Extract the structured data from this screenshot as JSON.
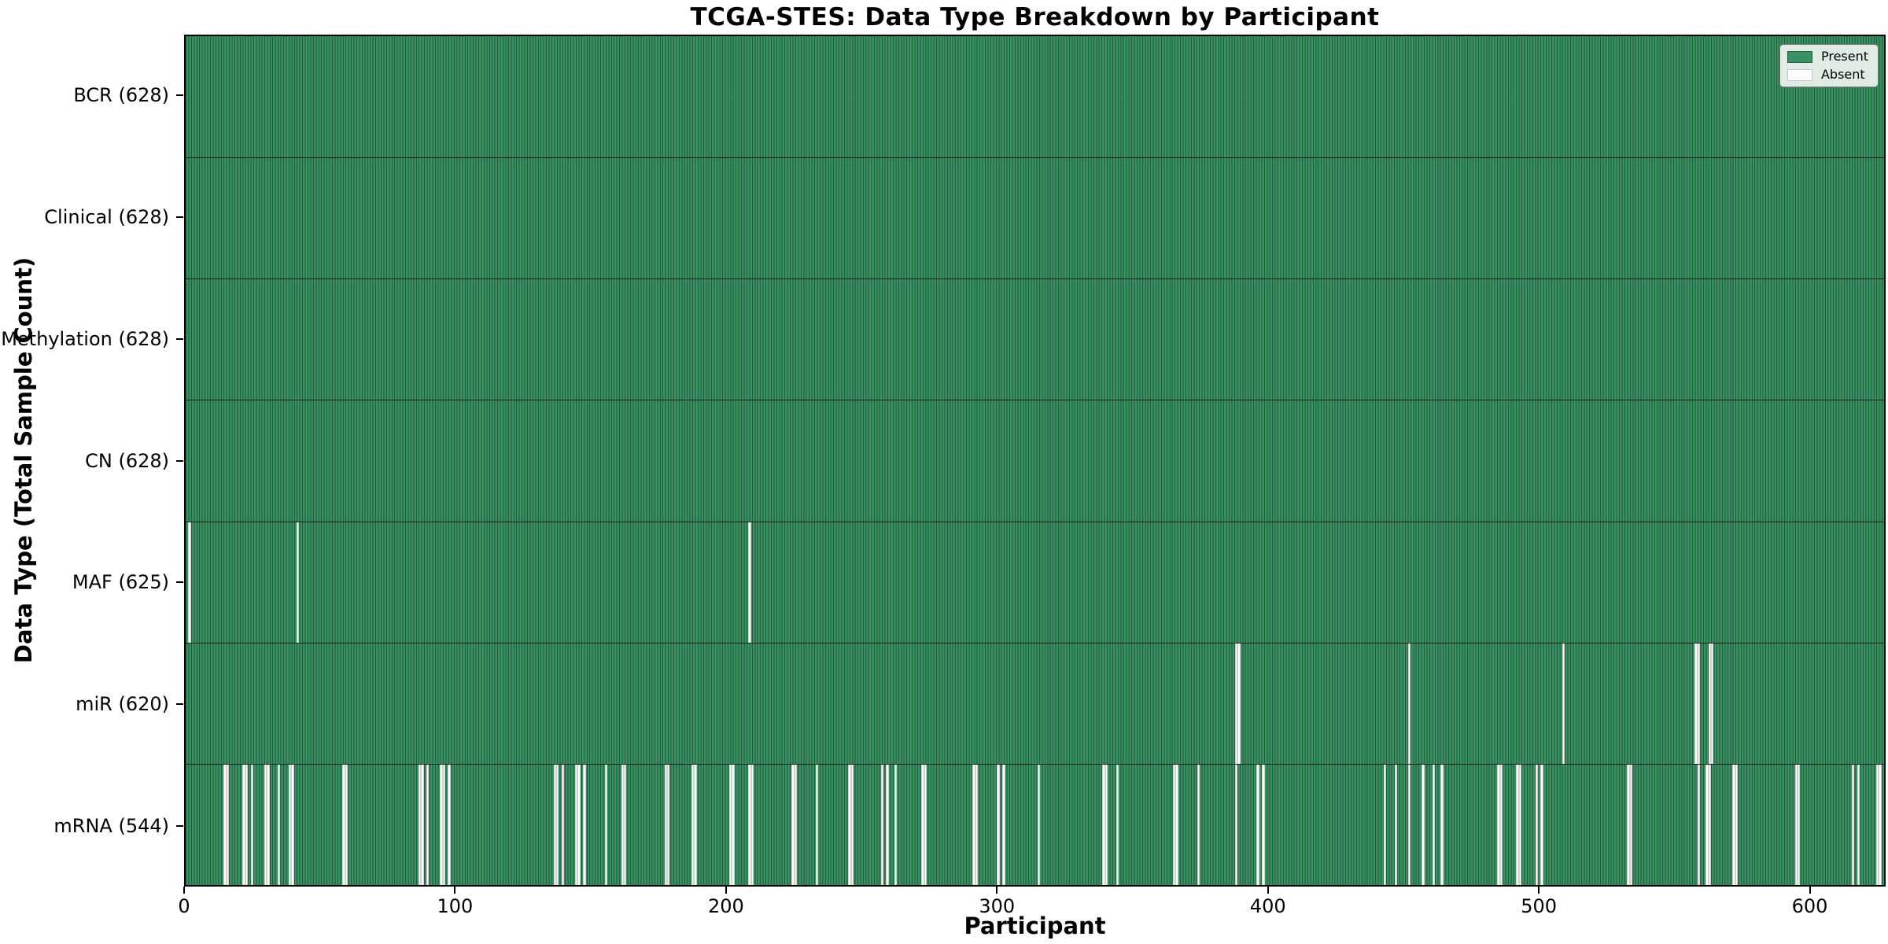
{
  "figure": {
    "title": "TCGA-STES: Data Type Breakdown by Participant",
    "xlabel": "Participant",
    "ylabel": "Data Type (Total Sample Count)"
  },
  "legend": {
    "position": "upper right",
    "items": [
      {
        "label": "Present",
        "color": "#3a9161"
      },
      {
        "label": "Absent",
        "color": "#ffffff"
      }
    ]
  },
  "chart_data": {
    "type": "heatmap",
    "title": "TCGA-STES: Data Type Breakdown by Participant",
    "xlabel": "Participant",
    "ylabel": "Data Type (Total Sample Count)",
    "n_participants": 628,
    "x_ticks": [
      0,
      100,
      200,
      300,
      400,
      500,
      600
    ],
    "grid": false,
    "colors": {
      "present": "#3a9161",
      "absent": "#ffffff",
      "cell_edge": "#0c2c1c",
      "row_separator": "#0a0a0a",
      "plot_border": "#000000"
    },
    "rows": [
      {
        "label": "BCR (628)",
        "data_type": "BCR",
        "present_count": 628,
        "absent_count": 0,
        "absent_participants": []
      },
      {
        "label": "Clinical (628)",
        "data_type": "Clinical",
        "present_count": 628,
        "absent_count": 0,
        "absent_participants": []
      },
      {
        "label": "Methylation (628)",
        "data_type": "Methylation",
        "present_count": 628,
        "absent_count": 0,
        "absent_participants": []
      },
      {
        "label": "CN (628)",
        "data_type": "CN",
        "present_count": 628,
        "absent_count": 0,
        "absent_participants": []
      },
      {
        "label": "MAF (625)",
        "data_type": "MAF",
        "present_count": 625,
        "absent_count": 3,
        "absent_participants": [
          1,
          41,
          208
        ]
      },
      {
        "label": "miR (620)",
        "data_type": "miR",
        "present_count": 620,
        "absent_count": 8,
        "absent_participants": [
          388,
          389,
          452,
          509,
          558,
          559,
          563,
          564
        ]
      },
      {
        "label": "mRNA (544)",
        "data_type": "mRNA",
        "present_count": 544,
        "absent_count": 84,
        "absent_participants": [
          14,
          15,
          21,
          22,
          24,
          29,
          30,
          34,
          38,
          39,
          58,
          59,
          86,
          87,
          89,
          94,
          95,
          97,
          136,
          137,
          139,
          144,
          145,
          147,
          155,
          161,
          162,
          177,
          178,
          187,
          188,
          201,
          202,
          208,
          209,
          224,
          225,
          233,
          245,
          246,
          257,
          259,
          262,
          272,
          273,
          291,
          292,
          300,
          302,
          315,
          339,
          340,
          344,
          365,
          366,
          374,
          388,
          396,
          398,
          443,
          447,
          452,
          457,
          461,
          464,
          485,
          486,
          492,
          493,
          499,
          501,
          533,
          534,
          559,
          562,
          563,
          572,
          573,
          595,
          596,
          616,
          618,
          625,
          626
        ]
      }
    ]
  }
}
